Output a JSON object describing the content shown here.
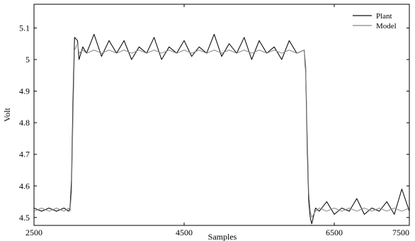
{
  "chart_data": {
    "type": "line",
    "title": "",
    "xlabel": "Samples",
    "ylabel": "Volt",
    "xlim": [
      2500,
      7500
    ],
    "ylim": [
      4.475,
      5.175
    ],
    "x_ticks": [
      2500,
      4500,
      6500,
      7500
    ],
    "x_tick_labels": [
      "2500",
      "4500",
      "6500",
      "7500"
    ],
    "y_ticks": [
      4.5,
      4.6,
      4.7,
      4.8,
      4.9,
      5.0,
      5.1
    ],
    "y_tick_labels": [
      "4.5",
      "4.6",
      "4.7",
      "4.8",
      "4.9",
      "5",
      "5.1"
    ],
    "grid": false,
    "legend": {
      "location": "top-right"
    },
    "series": [
      {
        "name": "Plant",
        "color": "#111111",
        "x": [
          2500,
          2600,
          2700,
          2800,
          2900,
          2960,
          2980,
          3000,
          3020,
          3040,
          3080,
          3100,
          3150,
          3200,
          3300,
          3400,
          3500,
          3600,
          3700,
          3800,
          3900,
          4000,
          4100,
          4200,
          4300,
          4400,
          4500,
          4600,
          4700,
          4800,
          4900,
          5000,
          5100,
          5200,
          5300,
          5400,
          5500,
          5600,
          5700,
          5800,
          5900,
          6000,
          6100,
          6120,
          6140,
          6160,
          6180,
          6200,
          6250,
          6300,
          6400,
          6500,
          6600,
          6700,
          6800,
          6900,
          7000,
          7100,
          7200,
          7300,
          7400,
          7500
        ],
        "y": [
          4.53,
          4.52,
          4.53,
          4.52,
          4.53,
          4.52,
          4.53,
          4.62,
          4.88,
          5.07,
          5.06,
          5.0,
          5.04,
          5.02,
          5.08,
          5.01,
          5.06,
          5.02,
          5.06,
          5.0,
          5.04,
          5.02,
          5.07,
          5.0,
          5.04,
          5.02,
          5.06,
          5.01,
          5.04,
          5.02,
          5.08,
          5.01,
          5.05,
          5.02,
          5.07,
          5.0,
          5.06,
          5.02,
          5.04,
          5.0,
          5.06,
          5.02,
          5.03,
          4.96,
          4.72,
          4.55,
          4.5,
          4.48,
          4.53,
          4.52,
          4.55,
          4.51,
          4.53,
          4.52,
          4.56,
          4.51,
          4.53,
          4.52,
          4.55,
          4.51,
          4.59,
          4.52
        ]
      },
      {
        "name": "Model",
        "color": "#888888",
        "x": [
          2500,
          2600,
          2700,
          2800,
          2900,
          2960,
          2980,
          3000,
          3020,
          3040,
          3080,
          3100,
          3150,
          3200,
          3300,
          3400,
          3500,
          3600,
          3700,
          3800,
          3900,
          4000,
          4100,
          4200,
          4300,
          4400,
          4500,
          4600,
          4700,
          4800,
          4900,
          5000,
          5100,
          5200,
          5300,
          5400,
          5500,
          5600,
          5700,
          5800,
          5900,
          6000,
          6100,
          6120,
          6140,
          6160,
          6180,
          6200,
          6250,
          6300,
          6400,
          6500,
          6600,
          6700,
          6800,
          6900,
          7000,
          7100,
          7200,
          7300,
          7400,
          7500
        ],
        "y": [
          4.52,
          4.53,
          4.52,
          4.53,
          4.52,
          4.53,
          4.52,
          4.58,
          4.82,
          5.03,
          5.05,
          5.02,
          5.03,
          5.02,
          5.03,
          5.02,
          5.03,
          5.02,
          5.03,
          5.02,
          5.03,
          5.02,
          5.03,
          5.02,
          5.03,
          5.02,
          5.03,
          5.02,
          5.03,
          5.02,
          5.03,
          5.02,
          5.03,
          5.02,
          5.03,
          5.02,
          5.03,
          5.02,
          5.03,
          5.02,
          5.03,
          5.02,
          5.03,
          4.98,
          4.76,
          4.58,
          4.52,
          4.5,
          4.52,
          4.53,
          4.52,
          4.53,
          4.52,
          4.53,
          4.52,
          4.53,
          4.52,
          4.53,
          4.52,
          4.53,
          4.52,
          4.53
        ]
      }
    ]
  }
}
